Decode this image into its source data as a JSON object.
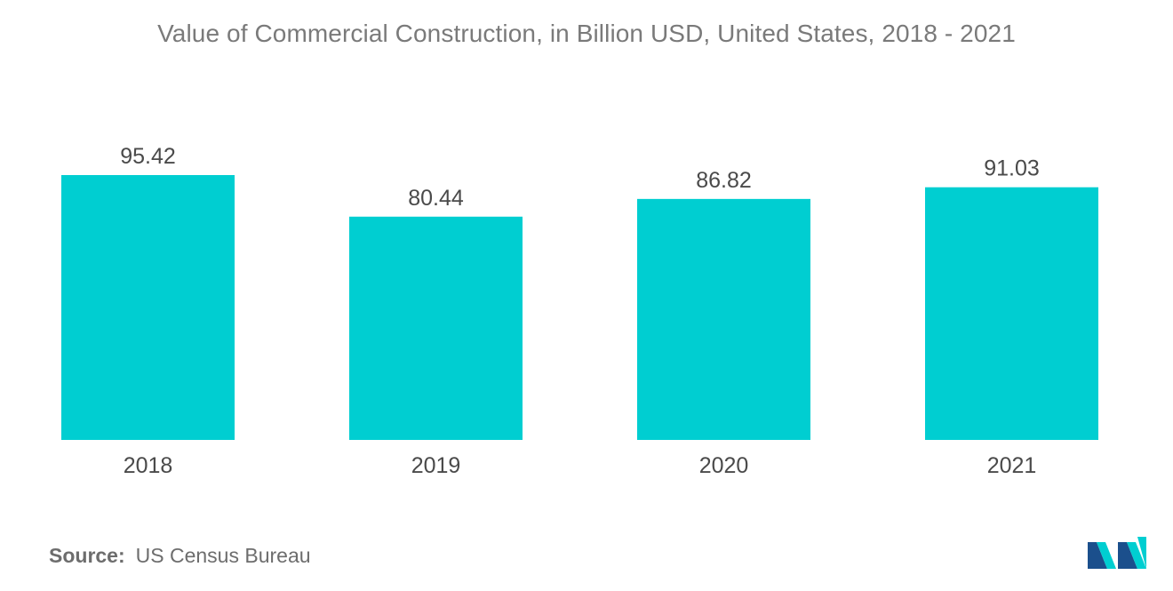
{
  "chart_data": {
    "type": "bar",
    "title": "Value of Commercial Construction, in Billion USD, United States, 2018 - 2021",
    "categories": [
      "2018",
      "2019",
      "2020",
      "2021"
    ],
    "values": [
      95.42,
      80.44,
      86.82,
      91.03
    ],
    "value_labels": [
      "95.42",
      "80.44",
      "86.82",
      "91.03"
    ],
    "xlabel": "",
    "ylabel": "",
    "ylim": [
      0,
      95.42
    ],
    "grid": false,
    "legend": "none",
    "bar_color": "#00CED1"
  },
  "source": {
    "label": "Source:",
    "text": "US Census Bureau"
  },
  "logo": {
    "icon": "mordor-intelligence-logo-icon",
    "colors": [
      "#1b4f8c",
      "#00CED1"
    ]
  }
}
